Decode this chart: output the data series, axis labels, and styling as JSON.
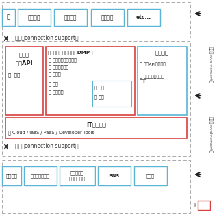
{
  "bg_color": "#ffffff",
  "dashed_border_color": "#aaaaaa",
  "blue_border": "#5ab4d6",
  "red_border": "#d94040",
  "arrow_color": "#222222",
  "top_boxes": [
    "害獣対策",
    "健康支援",
    "防災支援",
    "etc..."
  ],
  "bottom_boxes": [
    "スマートフォン",
    "環境センサ\n（天候情報）",
    "SNS",
    "その他"
  ],
  "top_partial_label": "理",
  "bottom_partial_label": "度センサ",
  "connection_text": "連携（connection support）",
  "data_api_line1": "データ",
  "data_api_line2": "流通API",
  "data_api_sub": "・  連携",
  "marketplace_title": "マーケットプレイス（DMP）",
  "marketplace_items": [
    "ソリューション事例",
    "ソースコード",
    "データ",
    "機能",
    "サービス"
  ],
  "eval_items": [
    "評価",
    "審査"
  ],
  "expansion_title": "拡張機能",
  "expansion_items": [
    "類似APIの共通化",
    "行政支援システム\nと連携"
  ],
  "infra_title": "ITインフラ",
  "infra_sub": "・ Cloud / IaaS / PaaS / Developer Tools",
  "right_label1": "参加（involvement）",
  "right_label2": "参加（involvement）",
  "note_text": "※"
}
